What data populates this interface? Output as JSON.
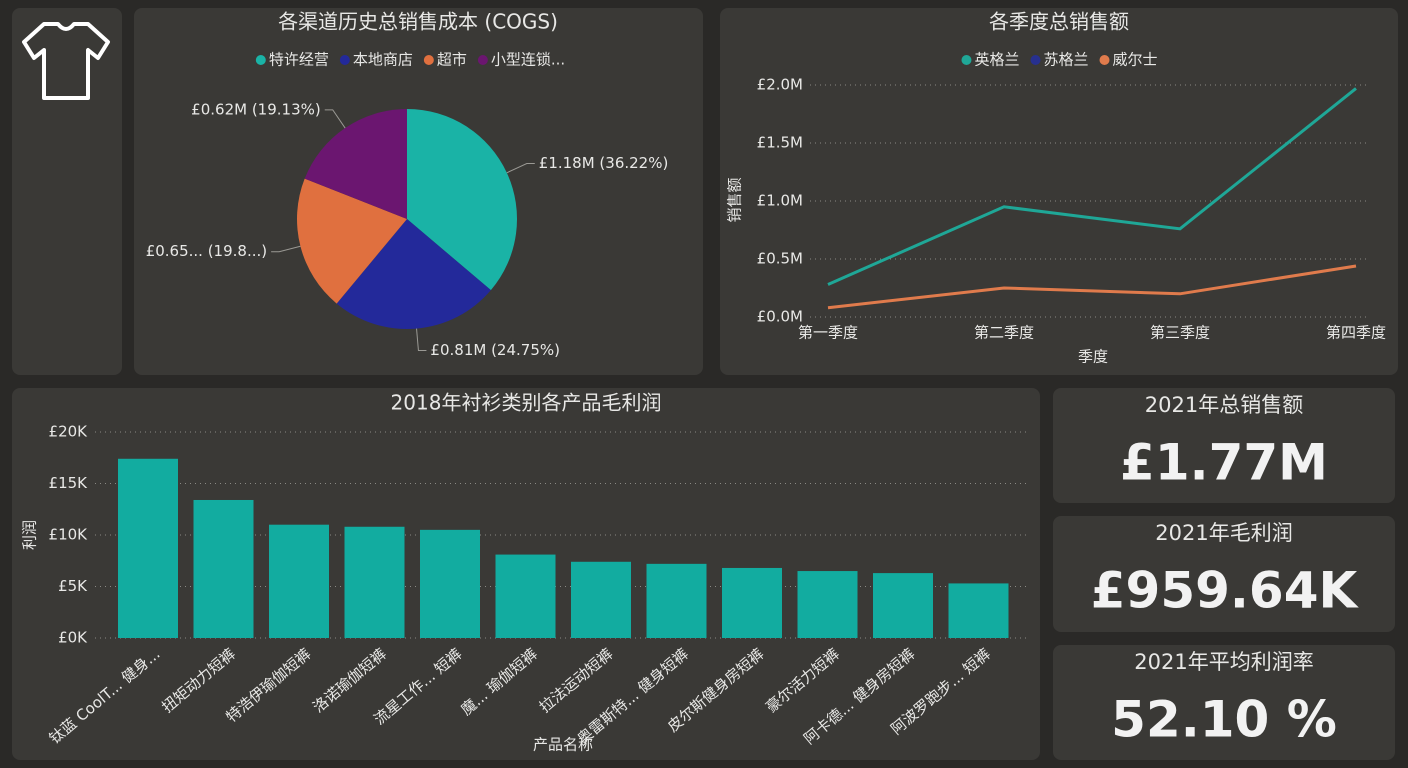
{
  "chart_data": [
    {
      "type": "pie",
      "title": "各渠道历史总销售成本 (COGS)",
      "categories": [
        "特许经营",
        "本地商店",
        "超市",
        "小型连锁..."
      ],
      "values": [
        1.18,
        0.81,
        0.65,
        0.62
      ],
      "value_labels": [
        "£1.18M (36.22%)",
        "£0.81M (24.75%)",
        "£0.65... (19.8...)",
        "£0.62M (19.13%)"
      ],
      "colors": [
        "#1ab3a6",
        "#23299a",
        "#e0703f",
        "#6b1670"
      ]
    },
    {
      "type": "line",
      "title": "各季度总销售额",
      "x_label": "季度",
      "y_label": "销售额",
      "categories": [
        "第一季度",
        "第二季度",
        "第三季度",
        "第四季度"
      ],
      "series": [
        {
          "name": "英格兰",
          "color": "#1fa797",
          "values": [
            0.28,
            0.95,
            0.76,
            1.97
          ]
        },
        {
          "name": "苏格兰",
          "color": "#27308f",
          "values": [
            null,
            null,
            null,
            null
          ]
        },
        {
          "name": "威尔士",
          "color": "#e07b4c",
          "values": [
            0.08,
            0.25,
            0.2,
            0.44
          ]
        }
      ],
      "ylim": [
        0,
        2.0
      ],
      "yticks": [
        {
          "value": 0,
          "label": "£0.0M"
        },
        {
          "value": 0.5,
          "label": "£0.5M"
        },
        {
          "value": 1.0,
          "label": "£1.0M"
        },
        {
          "value": 1.5,
          "label": "£1.5M"
        },
        {
          "value": 2.0,
          "label": "£2.0M"
        }
      ],
      "grid": true
    },
    {
      "type": "bar",
      "title": "2018年衬衫类别各产品毛利润",
      "x_label": "产品名称",
      "y_label": "利润",
      "categories": [
        "钛蓝 CoolT... 健身...",
        "扭矩动力短裤",
        "特浩伊瑜伽短裤",
        "洛诺瑜伽短裤",
        "流星工作... 短裤",
        "魔... 瑜伽短裤",
        "拉法运动短裤",
        "奥雷斯特... 健身短裤",
        "皮尔斯健身房短裤",
        "豪尔活力短裤",
        "阿卡德... 健身房短裤",
        "阿波罗跑步... 短裤"
      ],
      "values": [
        17400,
        13400,
        11000,
        10800,
        10500,
        8100,
        7400,
        7200,
        6800,
        6500,
        6300,
        5300
      ],
      "color": "#12aca0",
      "ylim": [
        0,
        20000
      ],
      "yticks": [
        {
          "value": 0,
          "label": "£0K"
        },
        {
          "value": 5000,
          "label": "£5K"
        },
        {
          "value": 10000,
          "label": "£10K"
        },
        {
          "value": 15000,
          "label": "£15K"
        },
        {
          "value": 20000,
          "label": "£20K"
        }
      ],
      "grid": true
    }
  ],
  "cards": [
    {
      "title": "2021年总销售额",
      "value": "£1.77M"
    },
    {
      "title": "2021年毛利润",
      "value": "£959.64K"
    },
    {
      "title": "2021年平均利润率",
      "value": "52.10 %"
    }
  ]
}
